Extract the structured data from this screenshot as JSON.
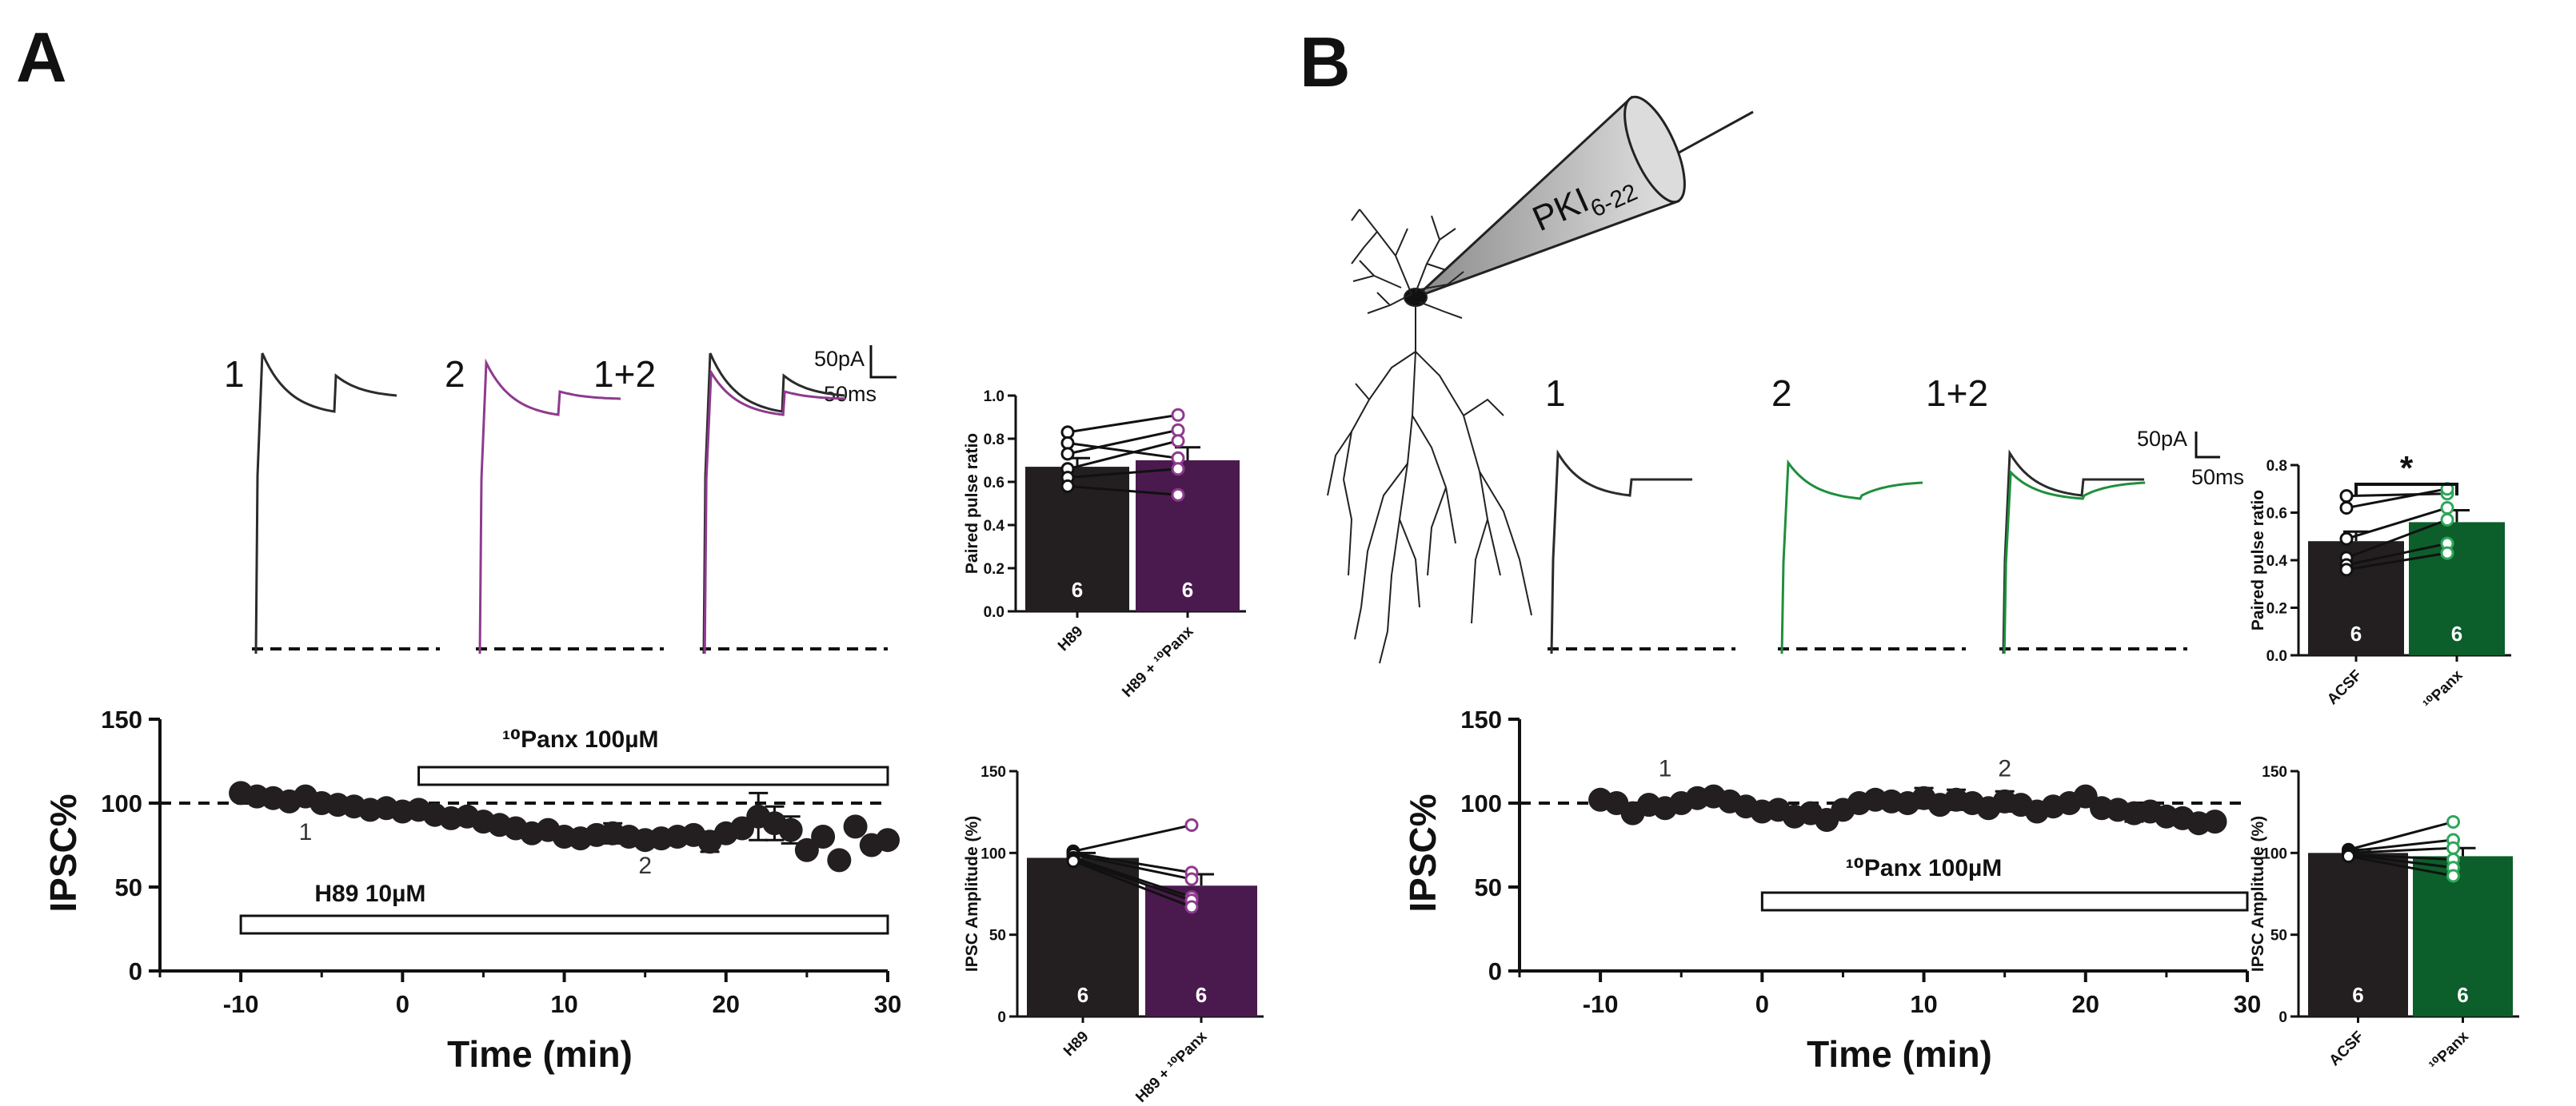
{
  "panels": {
    "A": {
      "label": "A",
      "trace_labels": [
        "1",
        "2",
        "1+2"
      ],
      "scale_bar": {
        "current": "50pA",
        "time": "50ms"
      },
      "trace_colors": {
        "baseline": "#2b2b2b",
        "drug": "#8e3a8e"
      }
    },
    "B": {
      "label": "B",
      "pipette_label": {
        "main": "PKI",
        "sub": "6-22"
      },
      "trace_labels": [
        "1",
        "2",
        "1+2"
      ],
      "scale_bar": {
        "current": "50pA",
        "time": "50ms"
      },
      "trace_colors": {
        "baseline": "#2b2b2b",
        "drug": "#1e8f3c"
      }
    }
  },
  "chart_data": [
    {
      "id": "A-timecourse",
      "type": "scatter",
      "ylabel": "IPSC%",
      "xlabel": "Time (min)",
      "xlim": [
        -15,
        30
      ],
      "ylim": [
        0,
        150
      ],
      "xticks": [
        -10,
        0,
        10,
        20,
        30
      ],
      "yticks": [
        0,
        50,
        100,
        150
      ],
      "baseline_ref": 100,
      "drug_bars": [
        {
          "label": "¹⁰Panx 100µM",
          "start": 1,
          "end": 30
        },
        {
          "label": "H89 10µM",
          "start": -10,
          "end": 30
        }
      ],
      "point_labels": [
        {
          "text": "1",
          "x": -6,
          "y": 78
        },
        {
          "text": "2",
          "x": 15,
          "y": 58
        }
      ],
      "series": [
        {
          "name": "IPSC%",
          "x": [
            -10,
            -9,
            -8,
            -7,
            -6,
            -5,
            -4,
            -3,
            -2,
            -1,
            0,
            1,
            2,
            3,
            4,
            5,
            6,
            7,
            8,
            9,
            10,
            11,
            12,
            13,
            14,
            15,
            16,
            17,
            18,
            19,
            20,
            21,
            22,
            23,
            24,
            25,
            26,
            27,
            28,
            29,
            30
          ],
          "y": [
            106,
            104,
            103,
            101,
            104,
            100,
            99,
            98,
            96,
            97,
            95,
            96,
            93,
            91,
            92,
            89,
            87,
            85,
            82,
            84,
            80,
            79,
            81,
            82,
            80,
            78,
            79,
            80,
            81,
            77,
            82,
            85,
            92,
            88,
            84,
            72,
            80,
            66,
            86,
            75,
            78
          ],
          "err": [
            0,
            0,
            0,
            0,
            0,
            0,
            0,
            0,
            0,
            0,
            0,
            0,
            0,
            0,
            0,
            0,
            0,
            0,
            0,
            0,
            0,
            0,
            0,
            6,
            0,
            0,
            0,
            0,
            0,
            6,
            0,
            0,
            14,
            10,
            8,
            0,
            0,
            0,
            0,
            0,
            0
          ]
        }
      ]
    },
    {
      "id": "A-ppr",
      "type": "bar",
      "ylabel": "Paired pulse ratio",
      "categories": [
        "H89",
        "H89 + ¹⁰Panx"
      ],
      "values": [
        0.67,
        0.7
      ],
      "sem": [
        0.04,
        0.06
      ],
      "n": [
        "6",
        "6"
      ],
      "colors": [
        "#231f20",
        "#4a1a4e"
      ],
      "ylim": [
        0,
        1.0
      ],
      "yticks": [
        0.0,
        0.2,
        0.4,
        0.6,
        0.8,
        1.0
      ],
      "pairs": [
        [
          0.83,
          0.91
        ],
        [
          0.78,
          0.71
        ],
        [
          0.73,
          0.84
        ],
        [
          0.66,
          0.79
        ],
        [
          0.62,
          0.66
        ],
        [
          0.58,
          0.54
        ]
      ],
      "significance": ""
    },
    {
      "id": "A-amp",
      "type": "bar",
      "ylabel": "IPSC Amplitude (%)",
      "categories": [
        "H89",
        "H89 + ¹⁰Panx"
      ],
      "values": [
        97,
        80
      ],
      "sem": [
        3,
        7
      ],
      "n": [
        "6",
        "6"
      ],
      "colors": [
        "#231f20",
        "#4a1a4e"
      ],
      "ylim": [
        0,
        150
      ],
      "yticks": [
        0,
        50,
        100,
        150
      ],
      "pairs": [
        [
          101,
          117
        ],
        [
          100,
          88
        ],
        [
          99,
          84
        ],
        [
          97,
          73
        ],
        [
          96,
          71
        ],
        [
          95,
          67
        ]
      ],
      "significance": ""
    },
    {
      "id": "B-timecourse",
      "type": "scatter",
      "ylabel": "IPSC%",
      "xlabel": "Time (min)",
      "xlim": [
        -15,
        30
      ],
      "ylim": [
        0,
        150
      ],
      "xticks": [
        -10,
        0,
        10,
        20,
        30
      ],
      "yticks": [
        0,
        50,
        100,
        150
      ],
      "baseline_ref": 100,
      "drug_bars": [
        {
          "label": "¹⁰Panx 100µM",
          "start": 0,
          "end": 30
        }
      ],
      "point_labels": [
        {
          "text": "1",
          "x": -6,
          "y": 116
        },
        {
          "text": "2",
          "x": 15,
          "y": 116
        }
      ],
      "series": [
        {
          "name": "IPSC%",
          "x": [
            -10,
            -9,
            -8,
            -7,
            -6,
            -5,
            -4,
            -3,
            -2,
            -1,
            0,
            1,
            2,
            3,
            4,
            5,
            6,
            7,
            8,
            9,
            10,
            11,
            12,
            13,
            14,
            15,
            16,
            17,
            18,
            19,
            20,
            21,
            22,
            23,
            24,
            25,
            26,
            27,
            28
          ],
          "y": [
            102,
            100,
            94,
            99,
            97,
            100,
            103,
            104,
            101,
            98,
            95,
            96,
            92,
            94,
            90,
            96,
            100,
            102,
            101,
            100,
            103,
            99,
            102,
            100,
            97,
            101,
            99,
            95,
            98,
            100,
            104,
            97,
            96,
            94,
            95,
            92,
            91,
            88,
            89
          ],
          "err": [
            0,
            0,
            0,
            0,
            0,
            0,
            0,
            0,
            0,
            0,
            0,
            0,
            0,
            0,
            0,
            0,
            0,
            0,
            0,
            0,
            6,
            0,
            6,
            0,
            0,
            6,
            0,
            0,
            0,
            0,
            0,
            0,
            0,
            5,
            5,
            0,
            0,
            0,
            0
          ]
        }
      ]
    },
    {
      "id": "B-ppr",
      "type": "bar",
      "ylabel": "Paired pulse ratio",
      "categories": [
        "ACSF",
        "¹⁰Panx"
      ],
      "values": [
        0.48,
        0.56
      ],
      "sem": [
        0.04,
        0.05
      ],
      "n": [
        "6",
        "6"
      ],
      "colors": [
        "#231f20",
        "#0c5e2b"
      ],
      "ylim": [
        0,
        0.8
      ],
      "yticks": [
        0.0,
        0.2,
        0.4,
        0.6,
        0.8
      ],
      "pairs": [
        [
          0.67,
          0.68
        ],
        [
          0.62,
          0.7
        ],
        [
          0.49,
          0.62
        ],
        [
          0.41,
          0.57
        ],
        [
          0.38,
          0.47
        ],
        [
          0.36,
          0.43
        ]
      ],
      "significance": "*"
    },
    {
      "id": "B-amp",
      "type": "bar",
      "ylabel": "IPSC Amplitude (%)",
      "categories": [
        "ACSF",
        "¹⁰Panx"
      ],
      "values": [
        100,
        98
      ],
      "sem": [
        2,
        5
      ],
      "n": [
        "6",
        "6"
      ],
      "colors": [
        "#231f20",
        "#0c5e2b"
      ],
      "ylim": [
        0,
        150
      ],
      "yticks": [
        0,
        50,
        100,
        150
      ],
      "pairs": [
        [
          102,
          119
        ],
        [
          101,
          108
        ],
        [
          100,
          103
        ],
        [
          99,
          96
        ],
        [
          99,
          91
        ],
        [
          98,
          86
        ]
      ],
      "significance": ""
    }
  ]
}
